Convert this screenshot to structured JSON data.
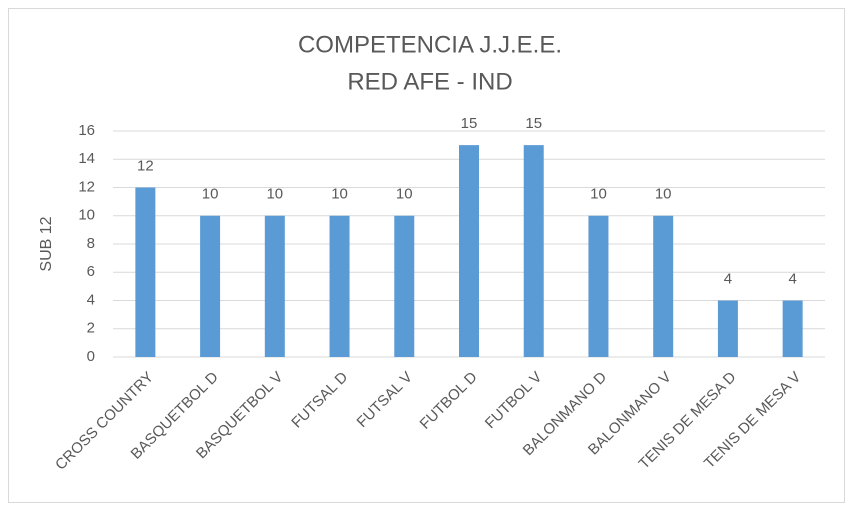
{
  "chart_data": {
    "type": "bar",
    "title": "COMPETENCIA J.J.E.E.",
    "subtitle": "RED AFE - IND",
    "y_label": "SUB 12",
    "categories": [
      "CROSS COUNTRY",
      "BASQUETBOL D",
      "BASQUETBOL V",
      "FUTSAL D",
      "FUTSAL V",
      "FUTBOL D",
      "FUTBOL V",
      "BALONMANO D",
      "BALONMANO V",
      "TENIS DE MESA D",
      "TENIS DE MESA V"
    ],
    "values": [
      12,
      10,
      10,
      10,
      10,
      15,
      15,
      10,
      10,
      4,
      4
    ],
    "color": "#5b9bd5",
    "ylim": [
      0,
      16
    ],
    "yticks": [
      0,
      2,
      4,
      6,
      8,
      10,
      12,
      14,
      16
    ],
    "grid": true
  }
}
